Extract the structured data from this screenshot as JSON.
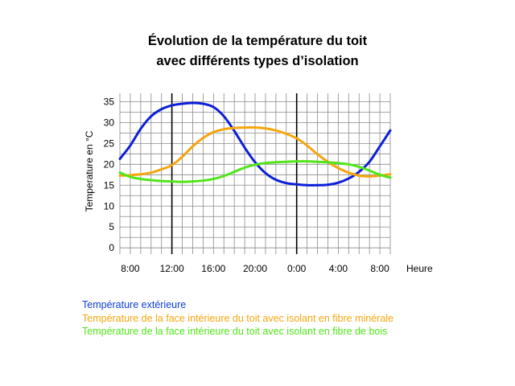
{
  "chart_data": {
    "type": "line",
    "title": "Évolution de la température du toit",
    "subtitle": "avec différents types d’isolation",
    "xlabel": "Heure",
    "ylabel": "Temperature en °C",
    "ylim": [
      -1.5,
      37
    ],
    "yticks": [
      0,
      5,
      10,
      15,
      20,
      25,
      30,
      35
    ],
    "x_range_hours": [
      7,
      33
    ],
    "xticks": [
      {
        "h": 8,
        "label": "8:00"
      },
      {
        "h": 12,
        "label": "12:00"
      },
      {
        "h": 16,
        "label": "16:00"
      },
      {
        "h": 20,
        "label": "20:00"
      },
      {
        "h": 24,
        "label": "0:00"
      },
      {
        "h": 28,
        "label": "4:00"
      },
      {
        "h": 32,
        "label": "8:00"
      }
    ],
    "vertical_markers_hours": [
      12,
      24
    ],
    "grid": true,
    "legend_placement": "bottom-left",
    "series": [
      {
        "name": "Température extérieure",
        "color": "#0d1fd8",
        "points": [
          [
            7,
            21.3
          ],
          [
            8,
            24.5
          ],
          [
            9,
            28.5
          ],
          [
            10,
            31.5
          ],
          [
            11,
            33.2
          ],
          [
            12,
            34.1
          ],
          [
            13,
            34.5
          ],
          [
            14,
            34.7
          ],
          [
            15,
            34.5
          ],
          [
            16,
            33.7
          ],
          [
            17,
            31.5
          ],
          [
            18,
            28.0
          ],
          [
            19,
            24.0
          ],
          [
            20,
            20.5
          ],
          [
            21,
            17.9
          ],
          [
            22,
            16.3
          ],
          [
            23,
            15.5
          ],
          [
            24,
            15.2
          ],
          [
            25,
            15.0
          ],
          [
            26,
            15.0
          ],
          [
            27,
            15.1
          ],
          [
            28,
            15.6
          ],
          [
            29,
            16.6
          ],
          [
            30,
            18.2
          ],
          [
            31,
            20.6
          ],
          [
            32,
            24.3
          ],
          [
            33,
            28.1
          ]
        ]
      },
      {
        "name": "Température de la face intérieure du toit avec isolant en fibre minérale",
        "color": "#f5a60f",
        "points": [
          [
            7,
            17.3
          ],
          [
            8,
            17.4
          ],
          [
            9,
            17.6
          ],
          [
            10,
            18.0
          ],
          [
            11,
            18.8
          ],
          [
            12,
            19.8
          ],
          [
            13,
            21.8
          ],
          [
            14,
            24.3
          ],
          [
            15,
            26.3
          ],
          [
            16,
            27.7
          ],
          [
            17,
            28.4
          ],
          [
            18,
            28.7
          ],
          [
            19,
            28.8
          ],
          [
            20,
            28.8
          ],
          [
            21,
            28.6
          ],
          [
            22,
            28.1
          ],
          [
            23,
            27.3
          ],
          [
            24,
            26.2
          ],
          [
            25,
            24.5
          ],
          [
            26,
            22.4
          ],
          [
            27,
            20.6
          ],
          [
            28,
            19.1
          ],
          [
            29,
            18.0
          ],
          [
            30,
            17.3
          ],
          [
            31,
            17.1
          ],
          [
            32,
            17.3
          ],
          [
            33,
            17.6
          ]
        ]
      },
      {
        "name": "Température de la face intérieure du toit avec isolant en fibre de bois",
        "color": "#52e51a",
        "points": [
          [
            7,
            18.0
          ],
          [
            8,
            17.0
          ],
          [
            9,
            16.5
          ],
          [
            10,
            16.2
          ],
          [
            11,
            16.0
          ],
          [
            12,
            15.9
          ],
          [
            13,
            15.8
          ],
          [
            14,
            15.9
          ],
          [
            15,
            16.1
          ],
          [
            16,
            16.5
          ],
          [
            17,
            17.2
          ],
          [
            18,
            18.2
          ],
          [
            19,
            19.2
          ],
          [
            20,
            19.9
          ],
          [
            21,
            20.3
          ],
          [
            22,
            20.5
          ],
          [
            23,
            20.6
          ],
          [
            24,
            20.7
          ],
          [
            25,
            20.7
          ],
          [
            26,
            20.6
          ],
          [
            27,
            20.5
          ],
          [
            28,
            20.3
          ],
          [
            29,
            20.0
          ],
          [
            30,
            19.4
          ],
          [
            31,
            18.5
          ],
          [
            32,
            17.5
          ],
          [
            33,
            16.8
          ]
        ]
      }
    ]
  }
}
